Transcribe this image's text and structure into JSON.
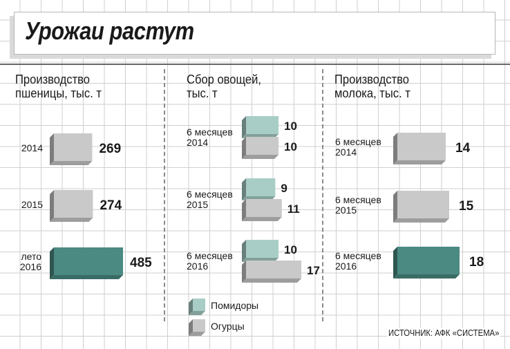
{
  "title": "Урожаи растут",
  "source": "ИСТОЧНИК: АФК «СИСТЕМА»",
  "colors": {
    "teal": "#4a8a83",
    "gray": "#c9c9c9",
    "lightTeal": "#a8cdc6"
  },
  "chart_data": [
    {
      "type": "bar",
      "title": "Производство пшеницы, тыс. т",
      "categories": [
        "2014",
        "2015",
        "лето 2016"
      ],
      "values": [
        269,
        274,
        485
      ]
    },
    {
      "type": "bar",
      "title": "Сбор овощей, тыс. т",
      "categories": [
        "6 месяцев 2014",
        "6 месяцев 2015",
        "6 месяцев 2016"
      ],
      "series": [
        {
          "name": "Помидоры",
          "values": [
            10,
            9,
            10
          ]
        },
        {
          "name": "Огурцы",
          "values": [
            10,
            11,
            17
          ]
        }
      ],
      "legend": "bottom-left"
    },
    {
      "type": "bar",
      "title": "Производство молока, тыс. т",
      "categories": [
        "6 месяцев 2014",
        "6 месяцев 2015",
        "6 месяцев 2016"
      ],
      "values": [
        14,
        15,
        18
      ]
    }
  ]
}
